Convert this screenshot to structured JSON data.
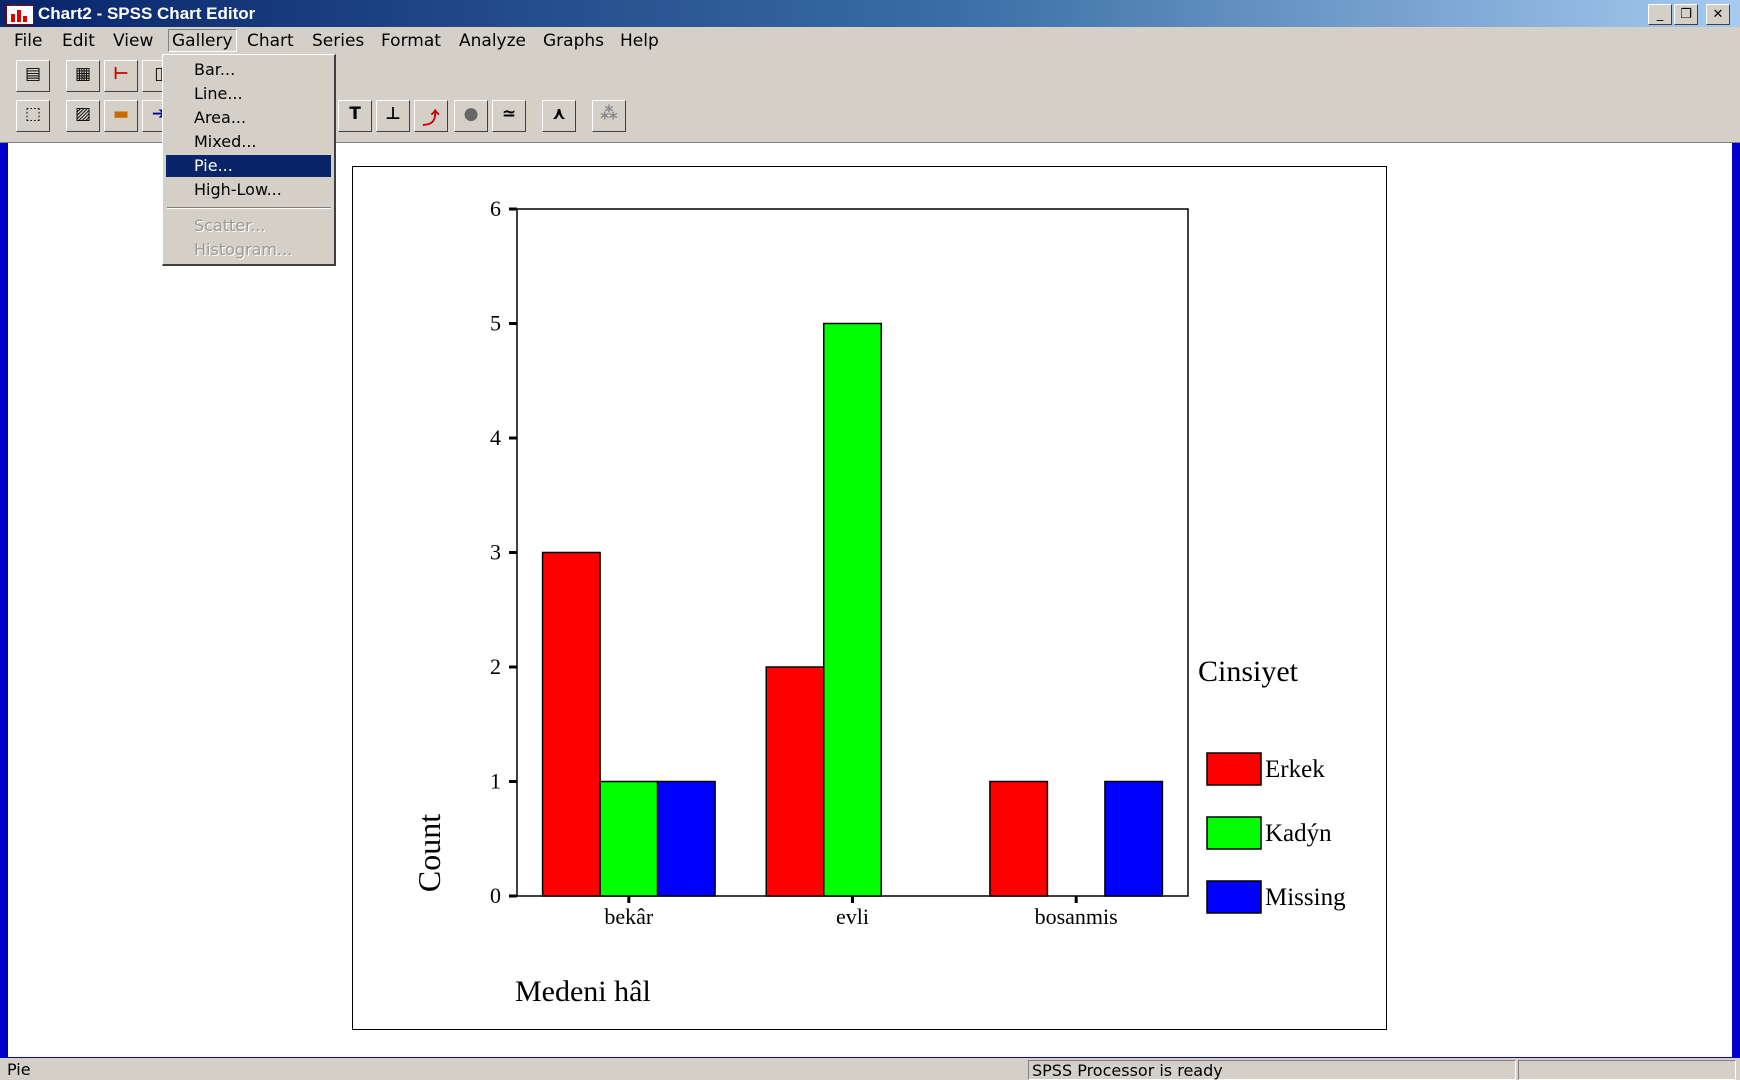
{
  "window": {
    "title": "Chart2 - SPSS Chart Editor",
    "icon": "chart-app-icon",
    "controls": [
      "minimize-icon",
      "restore-icon",
      "close-icon"
    ]
  },
  "menubar": [
    "File",
    "Edit",
    "View",
    "Gallery",
    "Chart",
    "Series",
    "Format",
    "Analyze",
    "Graphs",
    "Help"
  ],
  "gallery_menu": {
    "items": [
      "Bar...",
      "Line...",
      "Area...",
      "Mixed...",
      "Pie...",
      "High-Low..."
    ],
    "disabled_items": [
      "Scatter...",
      "Histogram..."
    ],
    "highlighted": "Pie..."
  },
  "toolbar": {
    "row1_icons": [
      "chart-data-icon",
      "table-icon",
      "legend-icon",
      "bar-icon"
    ],
    "row2_icons": [
      "select-icon",
      "fill-pattern-icon",
      "color-icon",
      "arrow-icon",
      "text-icon",
      "axis-icon",
      "rotate-icon",
      "explode-icon",
      "interpolate-icon",
      "spin-icon",
      "point-id-icon"
    ],
    "text_tool_glyph": "T"
  },
  "chart_data": {
    "type": "bar",
    "categories": [
      "bekâr",
      "evli",
      "bosanmis"
    ],
    "series": [
      {
        "name": "Erkek",
        "color": "#ff0000",
        "values": [
          3,
          2,
          1
        ]
      },
      {
        "name": "Kadýn",
        "color": "#00ff00",
        "values": [
          1,
          5,
          0
        ]
      },
      {
        "name": "Missing",
        "color": "#0000ff",
        "values": [
          1,
          0,
          1
        ]
      }
    ],
    "xlabel": "Medeni hâl",
    "ylabel": "Count",
    "ylim": [
      0,
      6
    ],
    "yticks": [
      0,
      1,
      2,
      3,
      4,
      5,
      6
    ],
    "legend_title": "Cinsiyet",
    "legend_position": "right",
    "grid": false
  },
  "statusbar": {
    "left": "Pie",
    "center": "SPSS Processor  is ready",
    "right": ""
  },
  "colors": {
    "desktop": "#0000cc",
    "chrome": "#d4d0c8",
    "menu_highlight": "#0a246a"
  }
}
